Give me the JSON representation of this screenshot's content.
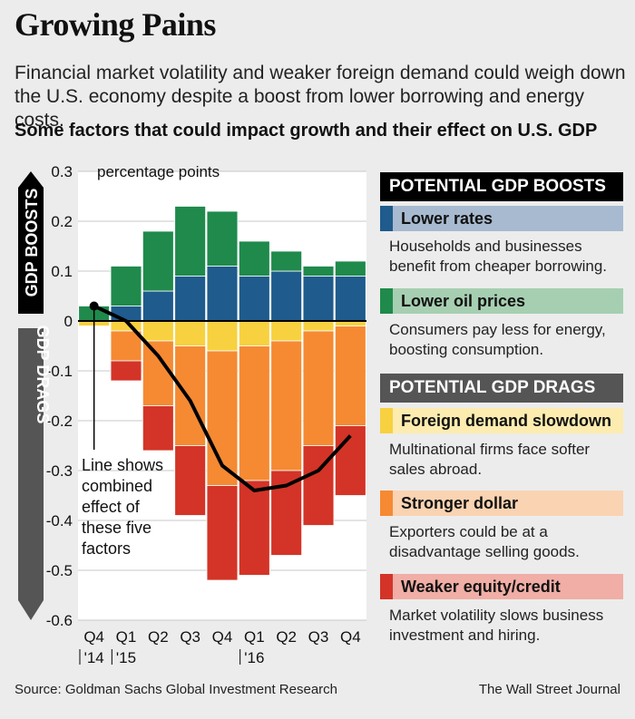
{
  "title": "Growing Pains",
  "subtitle": "Financial market volatility and weaker foreign demand could weigh down the U.S. economy despite a boost from lower borrowing and energy costs.",
  "question": "Some factors that could impact growth and their effect on U.S. GDP",
  "chart_data": {
    "type": "bar",
    "stacked": true,
    "unit_label": "percentage points",
    "ylim": [
      -0.6,
      0.3
    ],
    "yticks": [
      0.3,
      0.2,
      0.1,
      0,
      -0.1,
      -0.2,
      -0.3,
      -0.4,
      -0.5,
      -0.6
    ],
    "ytick_labels": [
      "0.3",
      "0.2",
      "0.1",
      "0",
      "-0.1",
      "-0.2",
      "-0.3",
      "-0.4",
      "-0.5",
      "-0.6"
    ],
    "categories": [
      "Q4 '14",
      "Q1 '15",
      "Q2",
      "Q3",
      "Q4",
      "Q1 '16",
      "Q2",
      "Q3",
      "Q4"
    ],
    "xtick_labels": [
      "Q4",
      "Q1",
      "Q2",
      "Q3",
      "Q4",
      "Q1",
      "Q2",
      "Q3",
      "Q4"
    ],
    "year_labels": [
      "'14",
      "'15",
      "",
      "",
      "",
      "'16",
      "",
      "",
      ""
    ],
    "series": [
      {
        "name": "Lower rates",
        "direction": "boost",
        "color": "#1f5b8c",
        "values": [
          0.0,
          0.03,
          0.06,
          0.09,
          0.11,
          0.09,
          0.1,
          0.09,
          0.09
        ]
      },
      {
        "name": "Lower oil prices",
        "direction": "boost",
        "color": "#1f8a4c",
        "values": [
          0.03,
          0.08,
          0.12,
          0.14,
          0.11,
          0.07,
          0.04,
          0.02,
          0.03
        ]
      },
      {
        "name": "Foreign demand slowdown",
        "direction": "drag",
        "color": "#f7d13f",
        "values": [
          -0.01,
          -0.02,
          -0.04,
          -0.05,
          -0.06,
          -0.05,
          -0.04,
          -0.02,
          -0.01
        ]
      },
      {
        "name": "Stronger dollar",
        "direction": "drag",
        "color": "#f58a33",
        "values": [
          0.0,
          -0.06,
          -0.13,
          -0.2,
          -0.27,
          -0.27,
          -0.26,
          -0.23,
          -0.2
        ]
      },
      {
        "name": "Weaker equity/credit",
        "direction": "drag",
        "color": "#d33427",
        "values": [
          0.0,
          -0.04,
          -0.09,
          -0.14,
          -0.19,
          -0.19,
          -0.17,
          -0.16,
          -0.14
        ]
      }
    ],
    "combined_line": [
      0.03,
      0.0,
      -0.07,
      -0.16,
      -0.29,
      -0.34,
      -0.33,
      -0.3,
      -0.23
    ],
    "annotation": [
      "Line shows",
      "combined",
      "effect of",
      "these five",
      "factors"
    ],
    "side_labels": {
      "boosts": "GDP BOOSTS",
      "drags": "GDP DRAGS"
    }
  },
  "legend": {
    "boosts_header": "POTENTIAL GDP BOOSTS",
    "drags_header": "POTENTIAL GDP DRAGS",
    "items": [
      {
        "label": "Lower rates",
        "desc": "Households and businesses benefit from cheaper borrowing.",
        "color": "#1f5b8c",
        "bg": "#a7bad0"
      },
      {
        "label": "Lower oil prices",
        "desc": "Consumers pay less for energy, boosting consumption.",
        "color": "#1f8a4c",
        "bg": "#a6cfb1"
      },
      {
        "label": "Foreign demand slowdown",
        "desc": "Multinational firms face softer sales abroad.",
        "color": "#f7d13f",
        "bg": "#fcecb0"
      },
      {
        "label": "Stronger dollar",
        "desc": "Exporters could be at a disadvantage selling goods.",
        "color": "#f58a33",
        "bg": "#fad3b2"
      },
      {
        "label": "Weaker equity/credit",
        "desc": "Market volatility slows business investment and hiring.",
        "color": "#d33427",
        "bg": "#f0aea6"
      }
    ]
  },
  "footer": {
    "source": "Source: Goldman Sachs Global Investment Research",
    "credit": "The Wall Street Journal"
  }
}
